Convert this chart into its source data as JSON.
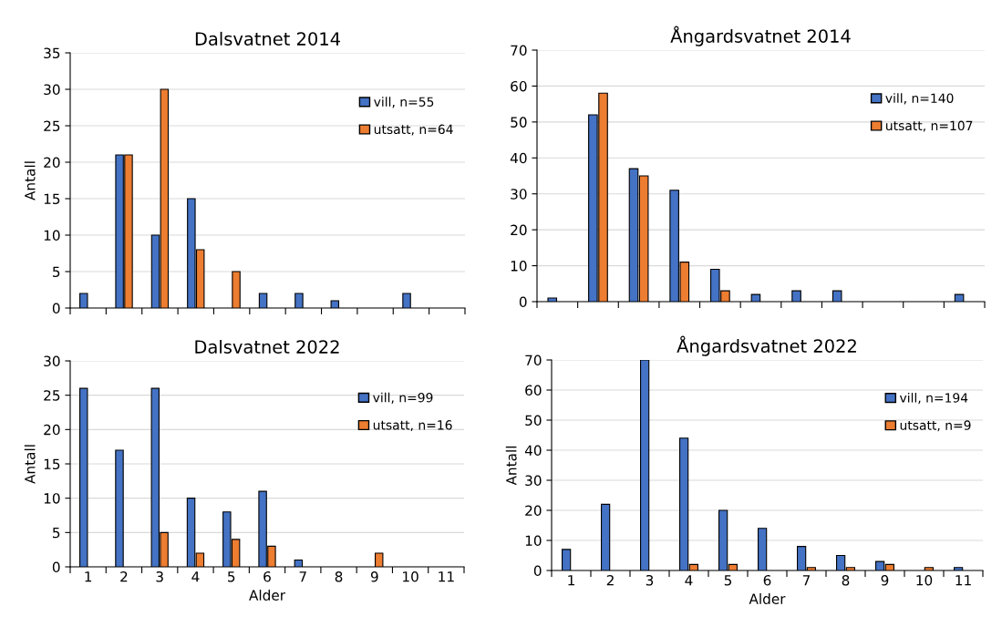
{
  "chart_data": [
    {
      "type": "bar",
      "title": "Dalsvatnet 2014",
      "ylabel": "Antall",
      "categories": [
        null,
        null,
        null,
        null,
        null,
        null,
        null,
        null,
        null,
        null,
        null
      ],
      "ylim": [
        0,
        35
      ],
      "yticks": [
        0,
        5,
        10,
        15,
        20,
        25,
        30,
        35
      ],
      "grid": "y",
      "legend": "right",
      "tick_labels": "y",
      "series": [
        {
          "name": "vill, n=55",
          "color": "#4472c4",
          "values": [
            2,
            21,
            10,
            15,
            0,
            2,
            2,
            1,
            0,
            2,
            0
          ]
        },
        {
          "name": "utsatt, n=64",
          "color": "#ed7d31",
          "values": [
            0,
            21,
            30,
            8,
            5,
            0,
            0,
            0,
            0,
            0,
            0
          ]
        }
      ]
    },
    {
      "type": "bar",
      "title": "Ångardsvatnet 2014",
      "categories": [
        null,
        null,
        null,
        null,
        null,
        null,
        null,
        null,
        null,
        null,
        null
      ],
      "ylim": [
        0,
        70
      ],
      "yticks": [
        0,
        10,
        20,
        30,
        40,
        50,
        60,
        70
      ],
      "grid": "y",
      "legend": "right",
      "tick_labels": "y",
      "series": [
        {
          "name": "vill, n=140",
          "color": "#4472c4",
          "values": [
            1,
            52,
            37,
            31,
            9,
            2,
            3,
            3,
            0,
            0,
            2
          ]
        },
        {
          "name": "utsatt, n=107",
          "color": "#ed7d31",
          "values": [
            0,
            58,
            35,
            11,
            3,
            0,
            0,
            0,
            0,
            0,
            0
          ]
        }
      ]
    },
    {
      "type": "bar",
      "title": "Dalsvatnet 2022",
      "ylabel": "Antall",
      "xlabel": "Alder",
      "categories": [
        "1",
        "2",
        "3",
        "4",
        "5",
        "6",
        "7",
        "8",
        "9",
        "10",
        "11"
      ],
      "ylim": [
        0,
        30
      ],
      "yticks": [
        0,
        5,
        10,
        15,
        20,
        25,
        30
      ],
      "grid": "y",
      "legend": "right",
      "series": [
        {
          "name": "vill, n=99",
          "color": "#4472c4",
          "values": [
            26,
            17,
            26,
            10,
            8,
            11,
            1,
            0,
            0,
            0,
            0
          ]
        },
        {
          "name": "utsatt, n=16",
          "color": "#ed7d31",
          "values": [
            0,
            0,
            5,
            2,
            4,
            3,
            0,
            0,
            2,
            0,
            0
          ]
        }
      ]
    },
    {
      "type": "bar",
      "title": "Ångardsvatnet 2022",
      "ylabel": "Antall",
      "xlabel": "Alder",
      "categories": [
        "1",
        "2",
        "3",
        "4",
        "5",
        "6",
        "7",
        "8",
        "9",
        "10",
        "11"
      ],
      "ylim": [
        0,
        70
      ],
      "yticks": [
        0,
        10,
        20,
        30,
        40,
        50,
        60,
        70
      ],
      "grid": "y",
      "legend": "right",
      "series": [
        {
          "name": "vill, n=194",
          "color": "#4472c4",
          "values": [
            7,
            22,
            70,
            44,
            20,
            14,
            8,
            5,
            3,
            0,
            1
          ]
        },
        {
          "name": "utsatt, n=9",
          "color": "#ed7d31",
          "values": [
            0,
            0,
            0,
            2,
            2,
            0,
            1,
            1,
            2,
            1,
            0
          ]
        }
      ]
    }
  ]
}
